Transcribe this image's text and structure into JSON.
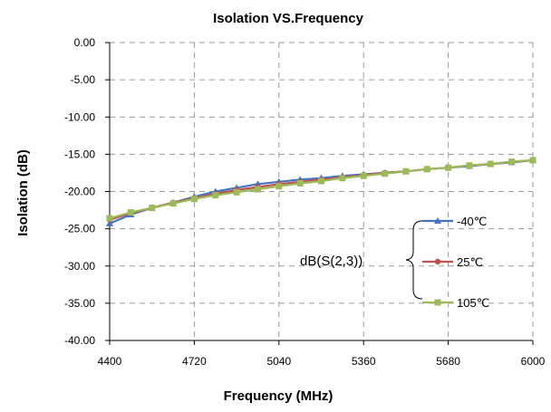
{
  "chart_data": {
    "type": "line",
    "title": "Isolation VS.Frequency",
    "xlabel": "Frequency (MHz)",
    "ylabel": "Isolation (dB)",
    "xlim": [
      4400,
      6000
    ],
    "ylim": [
      -40,
      0
    ],
    "xticks": [
      4400,
      4720,
      5040,
      5360,
      5680,
      6000
    ],
    "yticks": [
      0,
      -5,
      -10,
      -15,
      -20,
      -25,
      -30,
      -35,
      -40
    ],
    "xtick_labels": [
      "4400",
      "4720",
      "5040",
      "5360",
      "5680",
      "6000"
    ],
    "ytick_labels": [
      "0.00",
      "-5.00",
      "-10.00",
      "-15.00",
      "-20.00",
      "-25.00",
      "-30.00",
      "-35.00",
      "-40.00"
    ],
    "grid": true,
    "legend_placement": "bottom-right",
    "legend_group_label": "dB(S(2,3))",
    "x": [
      4400,
      4480,
      4560,
      4640,
      4720,
      4800,
      4880,
      4960,
      5040,
      5120,
      5200,
      5280,
      5360,
      5440,
      5520,
      5600,
      5680,
      5760,
      5840,
      5920,
      6000
    ],
    "series": [
      {
        "name": "-40℃",
        "color": "#4472c4",
        "marker": "triangle",
        "values": [
          -24.3,
          -23.1,
          -22.2,
          -21.5,
          -20.7,
          -20.0,
          -19.5,
          -19.0,
          -18.7,
          -18.4,
          -18.2,
          -17.9,
          -17.7,
          -17.5,
          -17.3,
          -17.0,
          -16.8,
          -16.6,
          -16.3,
          -16.1,
          -15.8
        ]
      },
      {
        "name": "25℃",
        "color": "#c0504d",
        "marker": "circle",
        "values": [
          -23.8,
          -22.9,
          -22.2,
          -21.5,
          -20.9,
          -20.3,
          -19.8,
          -19.4,
          -19.0,
          -18.7,
          -18.4,
          -18.1,
          -17.8,
          -17.5,
          -17.3,
          -17.0,
          -16.8,
          -16.5,
          -16.3,
          -16.0,
          -15.8
        ]
      },
      {
        "name": "105℃",
        "color": "#9bbb59",
        "marker": "square",
        "values": [
          -23.6,
          -22.8,
          -22.2,
          -21.6,
          -21.0,
          -20.5,
          -20.1,
          -19.7,
          -19.3,
          -18.9,
          -18.6,
          -18.2,
          -17.9,
          -17.6,
          -17.3,
          -17.0,
          -16.8,
          -16.5,
          -16.3,
          -16.0,
          -15.8
        ]
      }
    ]
  }
}
